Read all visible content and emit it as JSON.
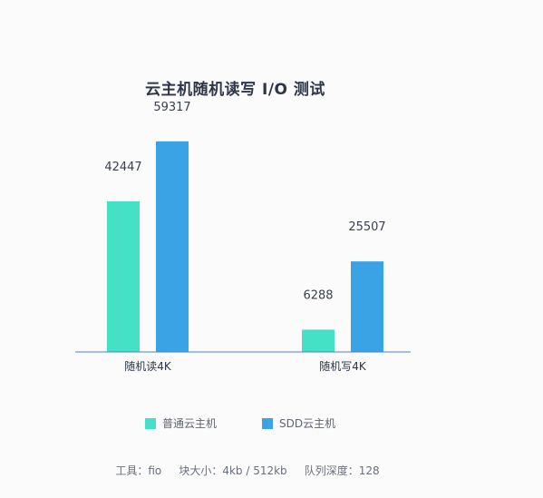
{
  "chart_data": {
    "type": "bar",
    "title": "云主机随机读写 I/O 测试",
    "categories": [
      "随机读4K",
      "随机写4K"
    ],
    "series": [
      {
        "name": "普通云主机",
        "values": [
          42447,
          6288
        ],
        "color": "#45e1c7"
      },
      {
        "name": "SDD云主机",
        "values": [
          59317,
          25507
        ],
        "color": "#3aa3e6"
      }
    ],
    "ylim": [
      0,
      70000
    ],
    "grid": false,
    "show_value_labels": true,
    "legend_position": "bottom",
    "axis_color": "#4a7fd1"
  },
  "footnote": "工具：fio     块大小：4kb / 512kb     队列深度：128"
}
